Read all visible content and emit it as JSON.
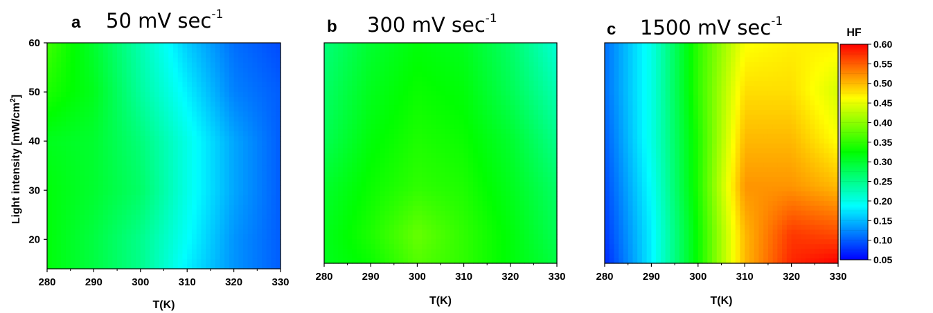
{
  "chart_data": [
    {
      "type": "heatmap",
      "panel_letter": "a",
      "title": "50 mV sec",
      "title_superscript": "-1",
      "xlabel": "T(K)",
      "ylabel": "Light intensity [mW/cm",
      "ylabel_superscript": "2",
      "ylabel_suffix": "]",
      "xlim": [
        280,
        330
      ],
      "ylim": [
        14,
        60
      ],
      "xticks": [
        280,
        290,
        300,
        310,
        320,
        330
      ],
      "yticks": [
        20,
        30,
        40,
        50,
        60
      ],
      "x": [
        280,
        290,
        300,
        310,
        320,
        330
      ],
      "y": [
        14,
        20,
        30,
        40,
        50,
        60
      ],
      "z": [
        [
          0.32,
          0.29,
          0.25,
          0.18,
          0.13,
          0.1
        ],
        [
          0.32,
          0.29,
          0.25,
          0.19,
          0.13,
          0.1
        ],
        [
          0.32,
          0.3,
          0.27,
          0.2,
          0.14,
          0.1
        ],
        [
          0.31,
          0.3,
          0.26,
          0.2,
          0.14,
          0.1
        ],
        [
          0.34,
          0.31,
          0.24,
          0.18,
          0.12,
          0.1
        ],
        [
          0.36,
          0.3,
          0.23,
          0.16,
          0.11,
          0.09
        ]
      ]
    },
    {
      "type": "heatmap",
      "panel_letter": "b",
      "title": "300 mV sec",
      "title_superscript": "-1",
      "xlabel": "T(K)",
      "ylabel": "",
      "xlim": [
        280,
        330
      ],
      "ylim": [
        14,
        60
      ],
      "xticks": [
        280,
        290,
        300,
        310,
        320,
        330
      ],
      "yticks": [],
      "x": [
        280,
        290,
        300,
        310,
        320,
        330
      ],
      "y": [
        14,
        20,
        30,
        40,
        50,
        60
      ],
      "z": [
        [
          0.31,
          0.33,
          0.37,
          0.35,
          0.32,
          0.29
        ],
        [
          0.31,
          0.34,
          0.38,
          0.35,
          0.32,
          0.28
        ],
        [
          0.3,
          0.33,
          0.35,
          0.34,
          0.31,
          0.27
        ],
        [
          0.28,
          0.32,
          0.34,
          0.33,
          0.3,
          0.25
        ],
        [
          0.27,
          0.31,
          0.33,
          0.32,
          0.28,
          0.23
        ],
        [
          0.26,
          0.3,
          0.32,
          0.31,
          0.27,
          0.21
        ]
      ]
    },
    {
      "type": "heatmap",
      "panel_letter": "c",
      "title": "1500 mV sec",
      "title_superscript": "-1",
      "xlabel": "T(K)",
      "ylabel": "",
      "xlim": [
        280,
        330
      ],
      "ylim": [
        14,
        60
      ],
      "xticks": [
        280,
        290,
        300,
        310,
        320,
        330
      ],
      "yticks": [],
      "x": [
        280,
        290,
        300,
        310,
        320,
        330
      ],
      "y": [
        14,
        20,
        30,
        40,
        50,
        60
      ],
      "z": [
        [
          0.07,
          0.18,
          0.33,
          0.5,
          0.58,
          0.6
        ],
        [
          0.08,
          0.18,
          0.33,
          0.5,
          0.57,
          0.56
        ],
        [
          0.09,
          0.19,
          0.34,
          0.52,
          0.52,
          0.5
        ],
        [
          0.1,
          0.2,
          0.34,
          0.5,
          0.5,
          0.46
        ],
        [
          0.11,
          0.2,
          0.35,
          0.48,
          0.48,
          0.44
        ],
        [
          0.11,
          0.2,
          0.35,
          0.46,
          0.47,
          0.47
        ]
      ]
    }
  ],
  "colorbar": {
    "title": "HF",
    "min": 0.05,
    "max": 0.6,
    "ticks": [
      "0.60",
      "0.55",
      "0.50",
      "0.45",
      "0.40",
      "0.35",
      "0.30",
      "0.25",
      "0.20",
      "0.15",
      "0.10",
      "0.05"
    ],
    "colormap": [
      "#0000ff",
      "#00ffff",
      "#00ff00",
      "#ffff00",
      "#ff0000"
    ]
  }
}
